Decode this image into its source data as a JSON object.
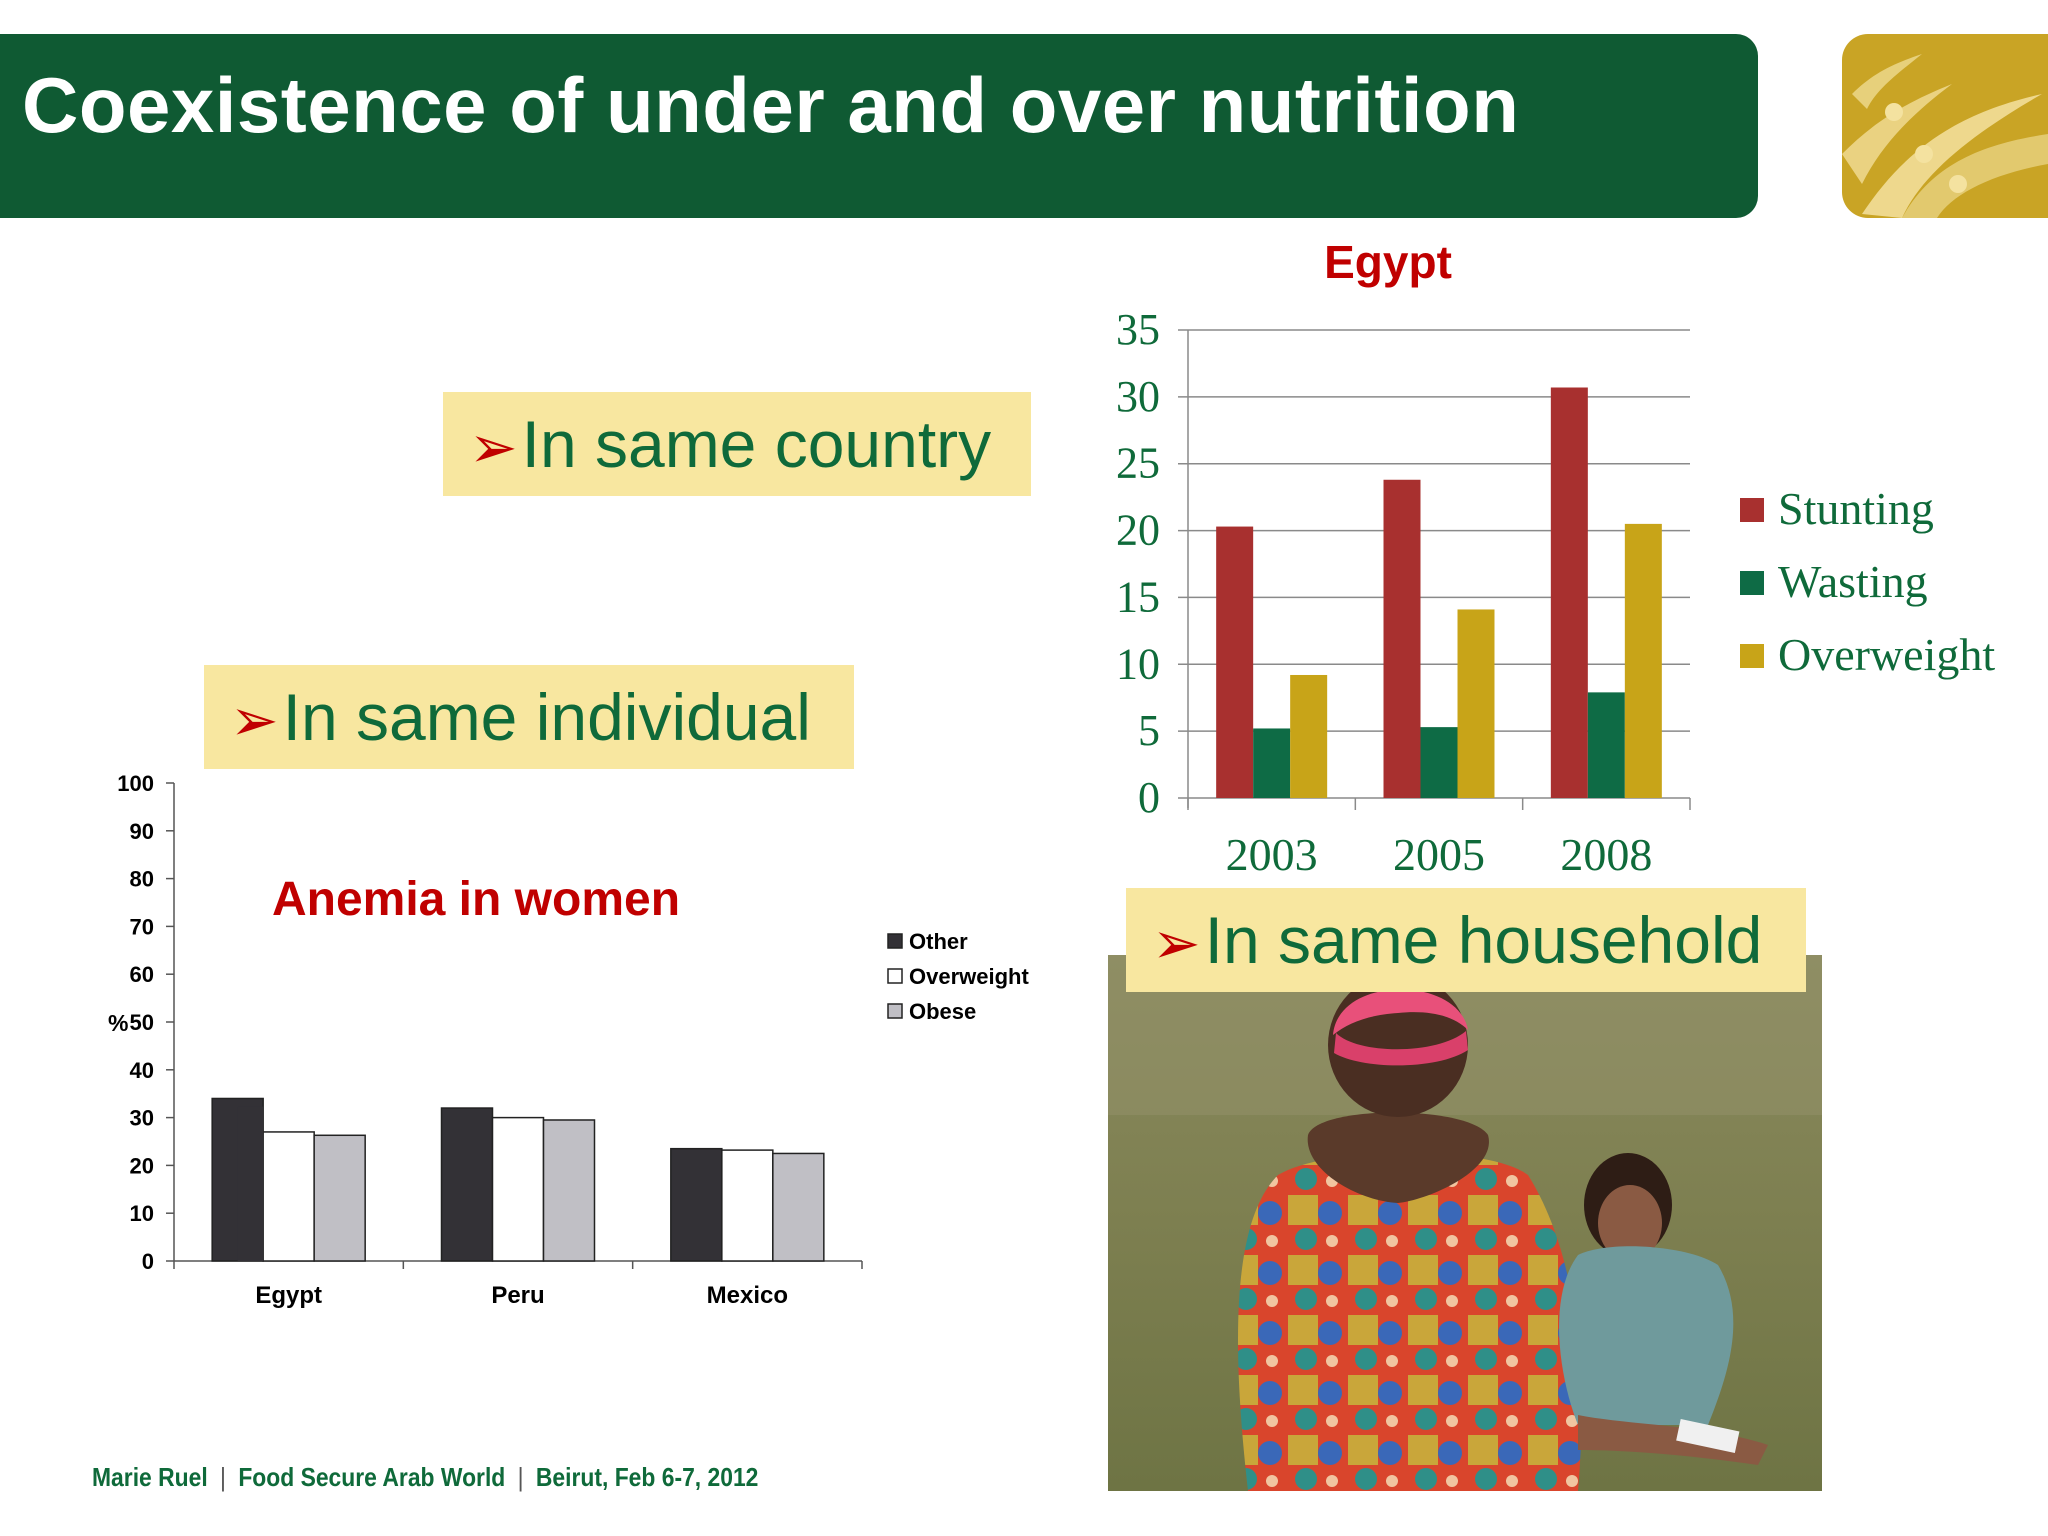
{
  "header": {
    "title": "Coexistence of under and over nutrition",
    "bar_color": "#0f5a33",
    "logo_color": "#c9a425"
  },
  "callouts": {
    "arrow": "➢",
    "country": "In same country",
    "individual": "In same individual",
    "household": "In same household"
  },
  "footer": {
    "author": "Marie Ruel",
    "event": "Food Secure Arab World",
    "place_date": "Beirut, Feb 6-7, 2012",
    "separator": "|"
  },
  "chart_data": [
    {
      "type": "bar",
      "title": "Egypt",
      "categories": [
        "2003",
        "2005",
        "2008"
      ],
      "series": [
        {
          "name": "Stunting",
          "values": [
            20.3,
            23.8,
            30.7
          ],
          "color": "#a8302f"
        },
        {
          "name": "Wasting",
          "values": [
            5.2,
            5.3,
            7.9
          ],
          "color": "#0e6b45"
        },
        {
          "name": "Overweight",
          "values": [
            9.2,
            14.1,
            20.5
          ],
          "color": "#c8a418"
        }
      ],
      "yticks": [
        "0",
        "5",
        "10",
        "15",
        "20",
        "25",
        "30",
        "35"
      ],
      "ylim": [
        0,
        35
      ],
      "grid": true,
      "legend": "right"
    },
    {
      "type": "bar",
      "title": "Anemia in women",
      "ylabel": "%",
      "categories": [
        "Egypt",
        "Peru",
        "Mexico"
      ],
      "series": [
        {
          "name": "Other",
          "values": [
            34,
            32,
            23.5
          ],
          "color": "#333136"
        },
        {
          "name": "Overweight",
          "values": [
            27,
            30,
            23.2
          ],
          "color": "#ffffff"
        },
        {
          "name": "Obese",
          "values": [
            26.3,
            29.5,
            22.5
          ],
          "color": "#c0bfc5"
        }
      ],
      "extra_values": {
        "Egypt_Other_offset": 32.3
      },
      "yticks": [
        "0",
        "10",
        "20",
        "30",
        "40",
        "50",
        "60",
        "70",
        "80",
        "90",
        "100"
      ],
      "ylim": [
        0,
        100
      ],
      "grid": false,
      "legend": "right"
    }
  ]
}
